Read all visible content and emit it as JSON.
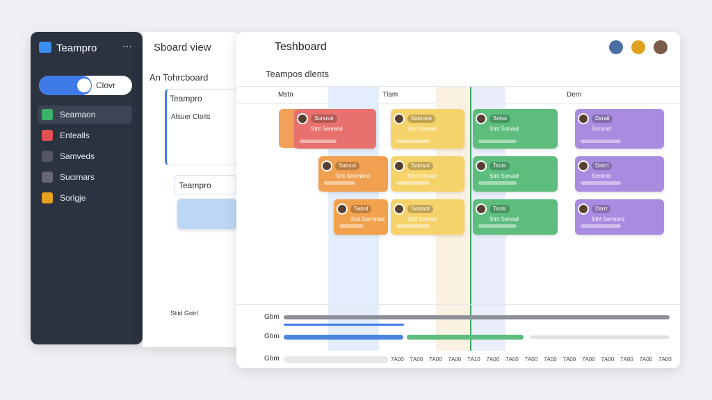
{
  "sidebar": {
    "title": "Teampro",
    "toggle": "Clovr",
    "menu": [
      "Seamaon",
      "Entealls",
      "Samveds",
      "Sucimars",
      "Sorlgje"
    ]
  },
  "middle": {
    "title": "Sboard view",
    "subtitle": "An Tohrcboard",
    "column": "Teampro",
    "card_title": "Alsuer Ctoits",
    "group": "Teampro",
    "footer": "Stiid Gotrl"
  },
  "main": {
    "title": "Teshboard",
    "subtitle": "Teampos dlents",
    "columns": [
      "Mstn",
      "Tlam",
      "Dem"
    ],
    "cards": [
      {
        "tag": "Sorsnot",
        "label": "Stnt Sennied"
      },
      {
        "tag": "Sotnreal",
        "label": "Stnt Sorvad"
      },
      {
        "tag": "Sotvs",
        "label": "Stnt Sorvad"
      },
      {
        "tag": "Dsrall",
        "label": "Soronet"
      },
      {
        "tag": "Satrsol",
        "label": "Stnt Senmiled"
      },
      {
        "tag": "Sotnsol",
        "label": "Stnt Sorvad"
      },
      {
        "tag": "Tsots",
        "label": "Stnt Sorvad"
      },
      {
        "tag": "Dstrrl",
        "label": "Soronet"
      },
      {
        "tag": "Satrsl",
        "label": "Stnt Sarmirad"
      },
      {
        "tag": "Sotnsol",
        "label": "Stnt Sorvad"
      },
      {
        "tag": "Tsots",
        "label": "Stnt Sorvad"
      },
      {
        "tag": "Dsrrt",
        "label": "Stnt Sermerd"
      }
    ],
    "timeline": {
      "rows": [
        "Gbm",
        "Gbm",
        "Gbm"
      ],
      "times": [
        "7A00",
        "7A00",
        "7A00",
        "7A00",
        "7A10",
        "7A00",
        "7A00",
        "7A00",
        "7A00",
        "7A00",
        "7A00",
        "7A00",
        "7A00",
        "7A00",
        "7A00"
      ]
    }
  }
}
